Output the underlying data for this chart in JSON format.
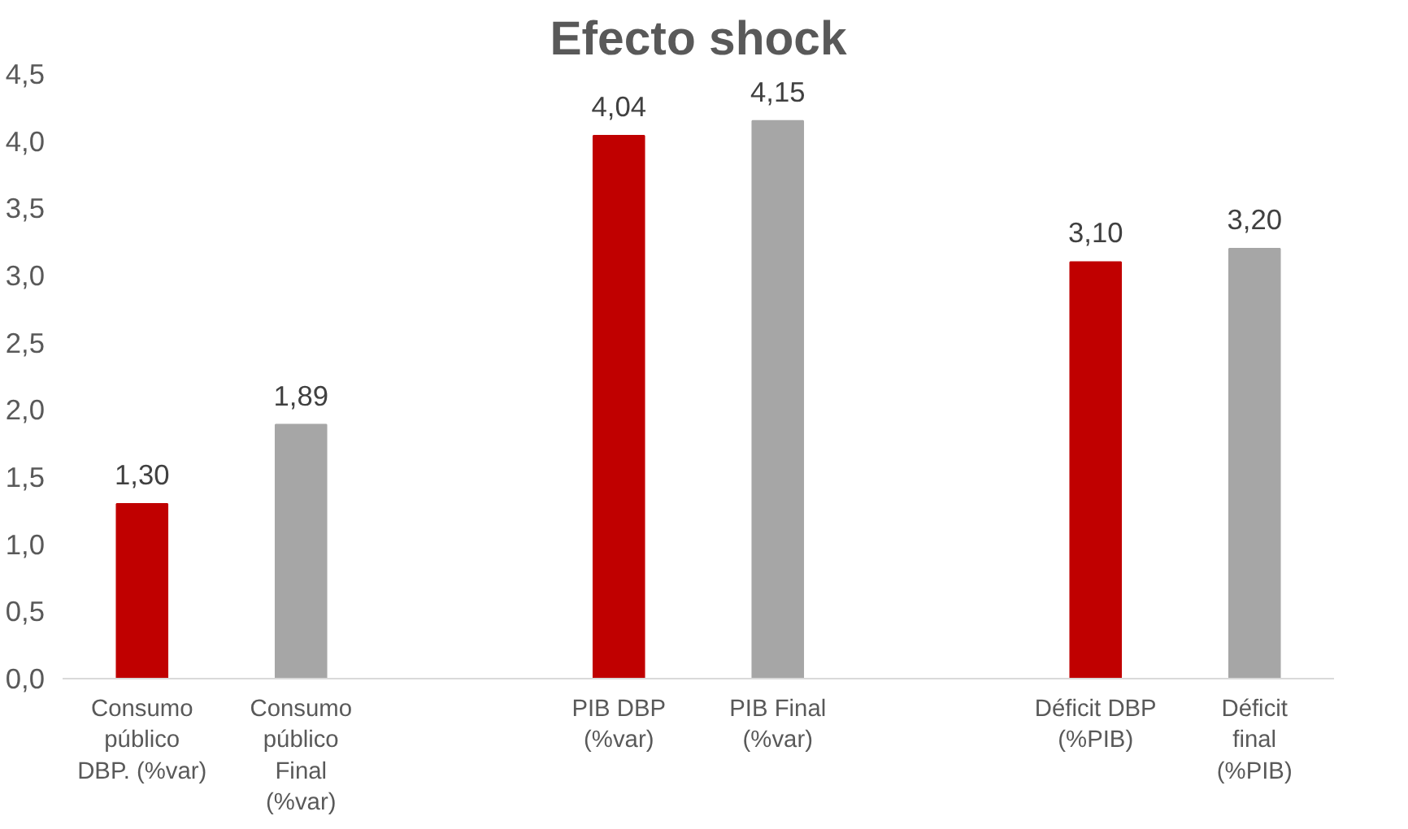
{
  "chart_data": {
    "type": "bar",
    "title": "Efecto shock",
    "categories": [
      "Consumo público DBP. (%var)",
      "Consumo público Final (%var)",
      null,
      "PIB DBP (%var)",
      "PIB Final (%var)",
      null,
      "Déficit DBP (%PIB)",
      "Déficit final (%PIB)"
    ],
    "values": [
      1.3,
      1.89,
      null,
      4.04,
      4.15,
      null,
      3.1,
      3.2
    ],
    "colors": [
      "#c00000",
      "#a6a6a6",
      "#ffffff",
      "#c00000",
      "#a6a6a6",
      "#ffffff",
      "#c00000",
      "#a6a6a6"
    ],
    "value_labels": [
      "1,30",
      "1,89",
      null,
      "4,04",
      "4,15",
      null,
      "3,10",
      "3,20"
    ],
    "ylim": [
      0,
      4.5
    ],
    "yticks": [
      {
        "value": 0,
        "label": "0,0"
      },
      {
        "value": 0.5,
        "label": "0,5"
      },
      {
        "value": 1,
        "label": "1,0"
      },
      {
        "value": 1.5,
        "label": "1,5"
      },
      {
        "value": 2,
        "label": "2,0"
      },
      {
        "value": 2.5,
        "label": "2,5"
      },
      {
        "value": 3,
        "label": "3,0"
      },
      {
        "value": 3.5,
        "label": "3,5"
      },
      {
        "value": 4,
        "label": "4,0"
      },
      {
        "value": 4.5,
        "label": "4,5"
      }
    ],
    "grid": false
  }
}
